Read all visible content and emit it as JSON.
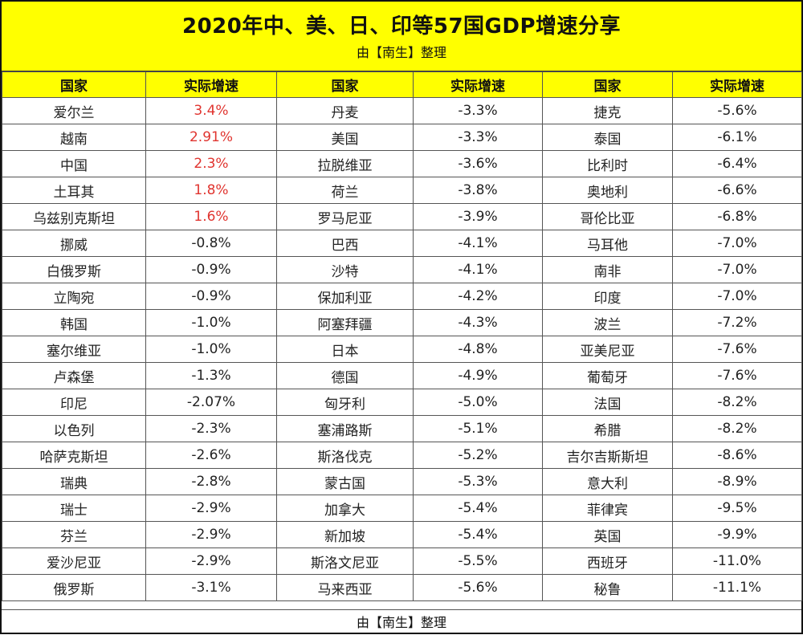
{
  "title": "2020年中、美、日、印等57国GDP增速分享",
  "subtitle": "由【南生】整理",
  "footer": "由【南生】整理",
  "headers": [
    "国家",
    "实际增速",
    "国家",
    "实际增速",
    "国家",
    "实际增速"
  ],
  "colors": {
    "header_bg": "#ffff00",
    "positive_value": "#e0342f",
    "text": "#222222"
  },
  "rows": [
    [
      {
        "name": "爱尔兰",
        "value": "3.4%",
        "positive": true
      },
      {
        "name": "丹麦",
        "value": "-3.3%"
      },
      {
        "name": "捷克",
        "value": "-5.6%"
      }
    ],
    [
      {
        "name": "越南",
        "value": "2.91%",
        "positive": true
      },
      {
        "name": "美国",
        "value": "-3.3%"
      },
      {
        "name": "泰国",
        "value": "-6.1%"
      }
    ],
    [
      {
        "name": "中国",
        "value": "2.3%",
        "positive": true
      },
      {
        "name": "拉脱维亚",
        "value": "-3.6%"
      },
      {
        "name": "比利时",
        "value": "-6.4%"
      }
    ],
    [
      {
        "name": "土耳其",
        "value": "1.8%",
        "positive": true
      },
      {
        "name": "荷兰",
        "value": "-3.8%"
      },
      {
        "name": "奥地利",
        "value": "-6.6%"
      }
    ],
    [
      {
        "name": "乌兹别克斯坦",
        "value": "1.6%",
        "positive": true
      },
      {
        "name": "罗马尼亚",
        "value": "-3.9%"
      },
      {
        "name": "哥伦比亚",
        "value": "-6.8%"
      }
    ],
    [
      {
        "name": "挪威",
        "value": "-0.8%"
      },
      {
        "name": "巴西",
        "value": "-4.1%"
      },
      {
        "name": "马耳他",
        "value": "-7.0%"
      }
    ],
    [
      {
        "name": "白俄罗斯",
        "value": "-0.9%"
      },
      {
        "name": "沙特",
        "value": "-4.1%"
      },
      {
        "name": "南非",
        "value": "-7.0%"
      }
    ],
    [
      {
        "name": "立陶宛",
        "value": "-0.9%"
      },
      {
        "name": "保加利亚",
        "value": "-4.2%"
      },
      {
        "name": "印度",
        "value": "-7.0%"
      }
    ],
    [
      {
        "name": "韩国",
        "value": "-1.0%"
      },
      {
        "name": "阿塞拜疆",
        "value": "-4.3%"
      },
      {
        "name": "波兰",
        "value": "-7.2%"
      }
    ],
    [
      {
        "name": "塞尔维亚",
        "value": "-1.0%"
      },
      {
        "name": "日本",
        "value": "-4.8%"
      },
      {
        "name": "亚美尼亚",
        "value": "-7.6%"
      }
    ],
    [
      {
        "name": "卢森堡",
        "value": "-1.3%"
      },
      {
        "name": "德国",
        "value": "-4.9%"
      },
      {
        "name": "葡萄牙",
        "value": "-7.6%"
      }
    ],
    [
      {
        "name": "印尼",
        "value": "-2.07%"
      },
      {
        "name": "匈牙利",
        "value": "-5.0%"
      },
      {
        "name": "法国",
        "value": "-8.2%"
      }
    ],
    [
      {
        "name": "以色列",
        "value": "-2.3%"
      },
      {
        "name": "塞浦路斯",
        "value": "-5.1%"
      },
      {
        "name": "希腊",
        "value": "-8.2%"
      }
    ],
    [
      {
        "name": "哈萨克斯坦",
        "value": "-2.6%"
      },
      {
        "name": "斯洛伐克",
        "value": "-5.2%"
      },
      {
        "name": "吉尔吉斯斯坦",
        "value": "-8.6%"
      }
    ],
    [
      {
        "name": "瑞典",
        "value": "-2.8%"
      },
      {
        "name": "蒙古国",
        "value": "-5.3%"
      },
      {
        "name": "意大利",
        "value": "-8.9%"
      }
    ],
    [
      {
        "name": "瑞士",
        "value": "-2.9%"
      },
      {
        "name": "加拿大",
        "value": "-5.4%"
      },
      {
        "name": "菲律宾",
        "value": "-9.5%"
      }
    ],
    [
      {
        "name": "芬兰",
        "value": "-2.9%"
      },
      {
        "name": "新加坡",
        "value": "-5.4%"
      },
      {
        "name": "英国",
        "value": "-9.9%"
      }
    ],
    [
      {
        "name": "爱沙尼亚",
        "value": "-2.9%"
      },
      {
        "name": "斯洛文尼亚",
        "value": "-5.5%"
      },
      {
        "name": "西班牙",
        "value": "-11.0%"
      }
    ],
    [
      {
        "name": "俄罗斯",
        "value": "-3.1%"
      },
      {
        "name": "马来西亚",
        "value": "-5.6%"
      },
      {
        "name": "秘鲁",
        "value": "-11.1%"
      }
    ]
  ]
}
